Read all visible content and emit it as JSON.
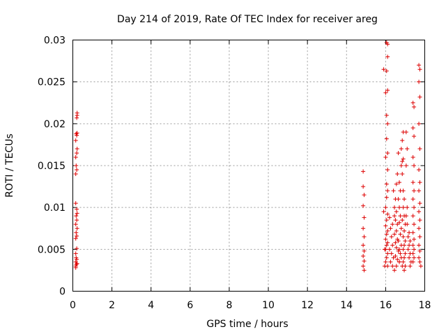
{
  "chart_data": {
    "type": "scatter",
    "title": "Day 214 of 2019, Rate Of TEC Index for receiver areg",
    "xlabel": "GPS time / hours",
    "ylabel": "ROTI / TECUs",
    "xlim": [
      0,
      18
    ],
    "ylim": [
      0,
      0.03
    ],
    "xticks": [
      0,
      2,
      4,
      6,
      8,
      10,
      12,
      14,
      16,
      18
    ],
    "yticks": [
      0,
      0.005,
      0.01,
      0.015,
      0.02,
      0.025,
      0.03
    ],
    "xtick_labels": [
      "0",
      "2",
      "4",
      "6",
      "8",
      "10",
      "12",
      "14",
      "16",
      "18"
    ],
    "ytick_labels": [
      "0",
      "0.005",
      "0.01",
      "0.015",
      "0.02",
      "0.025",
      "0.03"
    ],
    "grid": true,
    "marker": "+",
    "marker_color": "#dd0000",
    "series": [
      {
        "name": "ROTI",
        "points": [
          [
            0.15,
            0.003
          ],
          [
            0.18,
            0.0032
          ],
          [
            0.15,
            0.0035
          ],
          [
            0.2,
            0.0038
          ],
          [
            0.17,
            0.004
          ],
          [
            0.22,
            0.0033
          ],
          [
            0.15,
            0.0045
          ],
          [
            0.2,
            0.0051
          ],
          [
            0.15,
            0.0063
          ],
          [
            0.2,
            0.0066
          ],
          [
            0.17,
            0.007
          ],
          [
            0.22,
            0.0075
          ],
          [
            0.15,
            0.008
          ],
          [
            0.2,
            0.0085
          ],
          [
            0.17,
            0.009
          ],
          [
            0.22,
            0.0093
          ],
          [
            0.15,
            0.0105
          ],
          [
            0.2,
            0.0098
          ],
          [
            0.15,
            0.014
          ],
          [
            0.2,
            0.0145
          ],
          [
            0.17,
            0.015
          ],
          [
            0.15,
            0.016
          ],
          [
            0.2,
            0.0165
          ],
          [
            0.22,
            0.017
          ],
          [
            0.15,
            0.018
          ],
          [
            0.2,
            0.0186
          ],
          [
            0.17,
            0.0188
          ],
          [
            0.22,
            0.0189
          ],
          [
            0.2,
            0.0207
          ],
          [
            0.22,
            0.021
          ],
          [
            0.22,
            0.0213
          ],
          [
            0.15,
            0.0028
          ],
          [
            14.85,
            0.0143
          ],
          [
            14.85,
            0.0125
          ],
          [
            14.9,
            0.0115
          ],
          [
            14.85,
            0.0102
          ],
          [
            14.9,
            0.0088
          ],
          [
            14.85,
            0.0075
          ],
          [
            14.9,
            0.0065
          ],
          [
            14.85,
            0.0055
          ],
          [
            14.9,
            0.0048
          ],
          [
            14.85,
            0.0042
          ],
          [
            14.9,
            0.0036
          ],
          [
            14.85,
            0.003
          ],
          [
            14.9,
            0.0025
          ],
          [
            15.9,
            0.0265
          ],
          [
            15.9,
            0.0095
          ],
          [
            15.95,
            0.005
          ],
          [
            15.95,
            0.003
          ],
          [
            16.05,
            0.0297
          ],
          [
            16.1,
            0.0295
          ],
          [
            16.1,
            0.028
          ],
          [
            16.05,
            0.0263
          ],
          [
            16.0,
            0.0237
          ],
          [
            16.1,
            0.024
          ],
          [
            16.05,
            0.021
          ],
          [
            16.1,
            0.02
          ],
          [
            16.05,
            0.0182
          ],
          [
            16.1,
            0.0165
          ],
          [
            16.0,
            0.016
          ],
          [
            16.1,
            0.0145
          ],
          [
            16.05,
            0.0128
          ],
          [
            16.1,
            0.012
          ],
          [
            16.05,
            0.0112
          ],
          [
            16.0,
            0.01
          ],
          [
            16.1,
            0.0092
          ],
          [
            16.05,
            0.0085
          ],
          [
            16.0,
            0.0078
          ],
          [
            16.1,
            0.0072
          ],
          [
            16.05,
            0.0068
          ],
          [
            16.0,
            0.0062
          ],
          [
            16.1,
            0.0058
          ],
          [
            16.05,
            0.0055
          ],
          [
            16.0,
            0.005
          ],
          [
            16.1,
            0.0045
          ],
          [
            16.05,
            0.004
          ],
          [
            16.0,
            0.0035
          ],
          [
            16.1,
            0.003
          ],
          [
            16.2,
            0.0088
          ],
          [
            16.25,
            0.0075
          ],
          [
            16.3,
            0.0065
          ],
          [
            16.35,
            0.0055
          ],
          [
            16.2,
            0.005
          ],
          [
            16.3,
            0.0045
          ],
          [
            16.4,
            0.004
          ],
          [
            16.25,
            0.0035
          ],
          [
            16.35,
            0.003
          ],
          [
            16.45,
            0.0025
          ],
          [
            16.4,
            0.012
          ],
          [
            16.5,
            0.011
          ],
          [
            16.45,
            0.01
          ],
          [
            16.55,
            0.0095
          ],
          [
            16.5,
            0.0085
          ],
          [
            16.6,
            0.008
          ],
          [
            16.55,
            0.0072
          ],
          [
            16.45,
            0.0068
          ],
          [
            16.6,
            0.0062
          ],
          [
            16.5,
            0.0058
          ],
          [
            16.55,
            0.0052
          ],
          [
            16.65,
            0.0048
          ],
          [
            16.5,
            0.0042
          ],
          [
            16.6,
            0.0038
          ],
          [
            16.7,
            0.0035
          ],
          [
            16.55,
            0.003
          ],
          [
            16.65,
            0.011
          ],
          [
            16.7,
            0.01
          ],
          [
            16.75,
            0.009
          ],
          [
            16.7,
            0.0082
          ],
          [
            16.8,
            0.0075
          ],
          [
            16.75,
            0.0068
          ],
          [
            16.65,
            0.006
          ],
          [
            16.8,
            0.0055
          ],
          [
            16.7,
            0.005
          ],
          [
            16.75,
            0.0045
          ],
          [
            16.8,
            0.004
          ],
          [
            16.7,
            0.0035
          ],
          [
            16.85,
            0.003
          ],
          [
            16.6,
            0.014
          ],
          [
            16.7,
            0.013
          ],
          [
            16.65,
            0.0165
          ],
          [
            16.8,
            0.017
          ],
          [
            16.85,
            0.018
          ],
          [
            16.9,
            0.019
          ],
          [
            16.85,
            0.0155
          ],
          [
            16.9,
            0.0158
          ],
          [
            16.85,
            0.014
          ],
          [
            16.9,
            0.012
          ],
          [
            16.95,
            0.011
          ],
          [
            16.9,
            0.01
          ],
          [
            16.95,
            0.009
          ],
          [
            16.85,
            0.0085
          ],
          [
            17.0,
            0.008
          ],
          [
            16.95,
            0.0072
          ],
          [
            16.9,
            0.0065
          ],
          [
            17.0,
            0.006
          ],
          [
            16.95,
            0.0055
          ],
          [
            16.9,
            0.005
          ],
          [
            17.0,
            0.0045
          ],
          [
            16.95,
            0.004
          ],
          [
            16.9,
            0.0035
          ],
          [
            17.0,
            0.003
          ],
          [
            16.95,
            0.0025
          ],
          [
            17.05,
            0.019
          ],
          [
            17.1,
            0.017
          ],
          [
            17.05,
            0.015
          ],
          [
            17.1,
            0.01
          ],
          [
            17.05,
            0.009
          ],
          [
            17.1,
            0.008
          ],
          [
            17.2,
            0.007
          ],
          [
            17.15,
            0.0065
          ],
          [
            17.25,
            0.006
          ],
          [
            17.2,
            0.0055
          ],
          [
            17.15,
            0.005
          ],
          [
            17.25,
            0.0045
          ],
          [
            17.2,
            0.004
          ],
          [
            17.3,
            0.0035
          ],
          [
            17.25,
            0.003
          ],
          [
            17.4,
            0.0225
          ],
          [
            17.45,
            0.022
          ],
          [
            17.4,
            0.0195
          ],
          [
            17.45,
            0.0185
          ],
          [
            17.4,
            0.016
          ],
          [
            17.45,
            0.015
          ],
          [
            17.4,
            0.013
          ],
          [
            17.45,
            0.012
          ],
          [
            17.4,
            0.011
          ],
          [
            17.45,
            0.01
          ],
          [
            17.4,
            0.009
          ],
          [
            17.45,
            0.008
          ],
          [
            17.4,
            0.007
          ],
          [
            17.45,
            0.0062
          ],
          [
            17.4,
            0.0055
          ],
          [
            17.45,
            0.005
          ],
          [
            17.4,
            0.0045
          ],
          [
            17.45,
            0.004
          ],
          [
            17.4,
            0.0035
          ],
          [
            17.7,
            0.027
          ],
          [
            17.75,
            0.0265
          ],
          [
            17.7,
            0.025
          ],
          [
            17.75,
            0.0232
          ],
          [
            17.7,
            0.02
          ],
          [
            17.75,
            0.017
          ],
          [
            17.7,
            0.0145
          ],
          [
            17.75,
            0.013
          ],
          [
            17.7,
            0.012
          ],
          [
            17.75,
            0.0105
          ],
          [
            17.7,
            0.0095
          ],
          [
            17.75,
            0.0085
          ],
          [
            17.7,
            0.0075
          ],
          [
            17.75,
            0.0065
          ],
          [
            17.7,
            0.0055
          ],
          [
            17.75,
            0.0048
          ],
          [
            17.7,
            0.004
          ],
          [
            17.75,
            0.0035
          ],
          [
            17.8,
            0.003
          ],
          [
            16.55,
            0.0128
          ],
          [
            16.45,
            0.009
          ],
          [
            16.35,
            0.008
          ],
          [
            16.75,
            0.012
          ],
          [
            16.8,
            0.015
          ]
        ]
      }
    ]
  }
}
